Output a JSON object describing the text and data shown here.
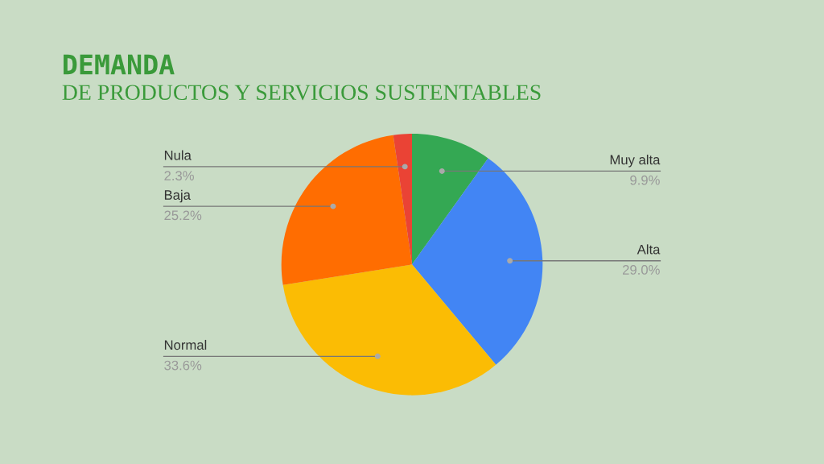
{
  "chart_data": {
    "type": "pie",
    "title": "DEMANDA",
    "subtitle": "DE PRODUCTOS Y SERVICIOS SUSTENTABLES",
    "categories": [
      "Muy alta",
      "Alta",
      "Normal",
      "Baja",
      "Nula"
    ],
    "values": [
      9.9,
      29.0,
      33.6,
      25.2,
      2.3
    ],
    "value_labels": [
      "9.9%",
      "29.0%",
      "33.6%",
      "25.2%",
      "2.3%"
    ],
    "colors": [
      "#34a853",
      "#4285f4",
      "#fbbc04",
      "#ff6d01",
      "#ea4335"
    ],
    "legend": false
  }
}
